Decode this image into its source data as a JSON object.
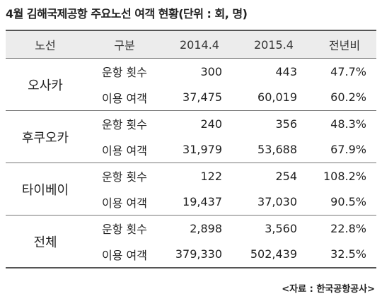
{
  "header": {
    "title": "4월 김해국제공항 주요노선 여객 현황(단위 : 회, 명)"
  },
  "table": {
    "columns": [
      "노선",
      "구분",
      "2014.4",
      "2015.4",
      "전년비"
    ],
    "groups": [
      {
        "route": "오사카",
        "rows": [
          [
            "운항 횟수",
            "300",
            "443",
            "47.7%"
          ],
          [
            "이용 여객",
            "37,475",
            "60,019",
            "60.2%"
          ]
        ]
      },
      {
        "route": "후쿠오카",
        "rows": [
          [
            "운항 횟수",
            "240",
            "356",
            "48.3%"
          ],
          [
            "이용 여객",
            "31,979",
            "53,688",
            "67.9%"
          ]
        ]
      },
      {
        "route": "타이베이",
        "rows": [
          [
            "운항 횟수",
            "122",
            "254",
            "108.2%"
          ],
          [
            "이용 여객",
            "19,437",
            "37,030",
            "90.5%"
          ]
        ]
      },
      {
        "route": "전체",
        "rows": [
          [
            "운항 횟수",
            "2,898",
            "3,560",
            "22.8%"
          ],
          [
            "이용 여객",
            "379,330",
            "502,439",
            "32.5%"
          ]
        ]
      }
    ]
  },
  "footer": {
    "source": "<자료 : 한국공항공사>"
  }
}
